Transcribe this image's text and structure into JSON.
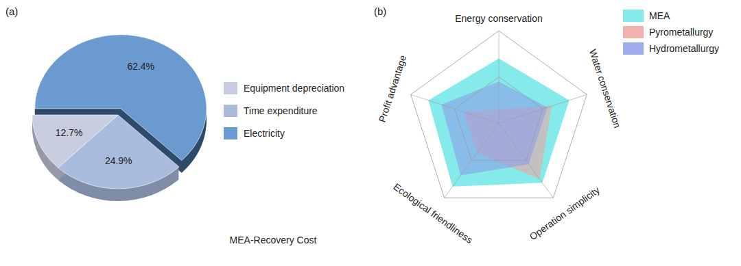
{
  "chart_data": [
    {
      "type": "pie",
      "title": "MEA-Recovery Cost",
      "annotations": [
        "(a)"
      ],
      "categories": [
        "Equipment depreciation",
        "Time expenditure",
        "Electricity"
      ],
      "values": [
        12.7,
        24.9,
        62.4
      ],
      "value_labels": [
        "12.7%",
        "24.9%",
        "62.4%"
      ],
      "colors": [
        "#c8cde0",
        "#a9bcdd",
        "#6b9ad0"
      ],
      "data_labels": true,
      "legend": "right"
    },
    {
      "type": "radar",
      "annotations": [
        "(b)"
      ],
      "categories": [
        "Energy conservation",
        "Water conservation",
        "Operation simplicity",
        "Ecological friendliness",
        "Profit advantage"
      ],
      "ylim": [
        0,
        10
      ],
      "yticks": [
        5,
        10
      ],
      "grid": true,
      "tick_labels": false,
      "legend": "top-right",
      "series": [
        {
          "name": "MEA",
          "color": "#6ee6e6",
          "values": [
            7,
            8,
            8,
            8.5,
            8
          ]
        },
        {
          "name": "Pyrometallurgy",
          "color": "#f0a3a3",
          "values": [
            1.5,
            6,
            7.5,
            4,
            4
          ]
        },
        {
          "name": "Hydrometallurgy",
          "color": "#8c9ee8",
          "values": [
            4.5,
            5.5,
            5.5,
            7,
            6.5
          ]
        }
      ]
    }
  ]
}
